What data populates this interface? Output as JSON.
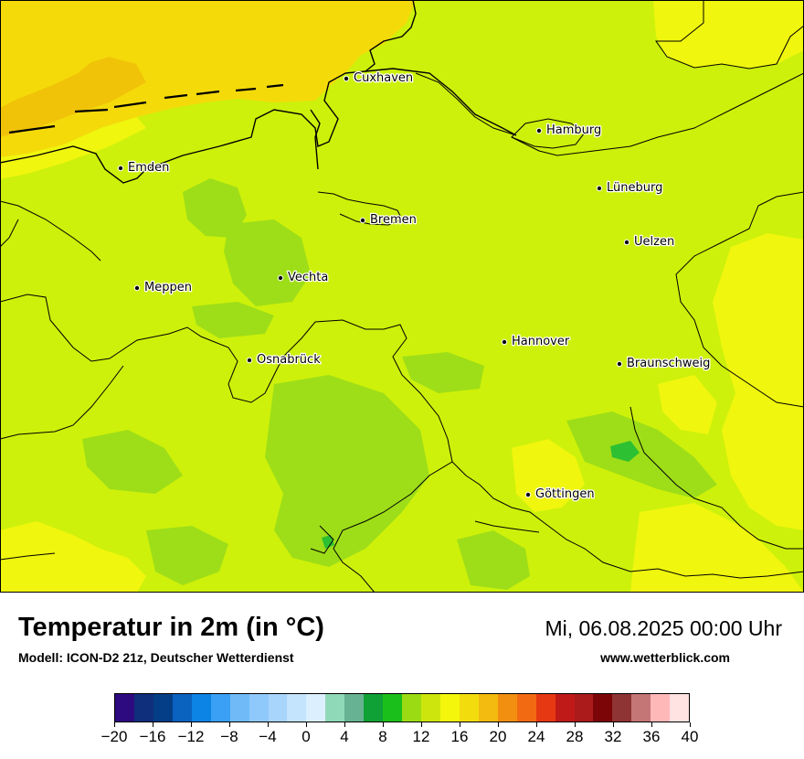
{
  "title": "Temperatur in 2m (in °C)",
  "model": "Modell: ICON-D2 21z, Deutscher Wetterdienst",
  "valid_time": "Mi, 06.08.2025 00:00 Uhr",
  "website": "www.wetterblick.com",
  "cities": [
    {
      "name": "Cuxhaven"
    },
    {
      "name": "Hamburg"
    },
    {
      "name": "Emden"
    },
    {
      "name": "Lüneburg"
    },
    {
      "name": "Bremen"
    },
    {
      "name": "Uelzen"
    },
    {
      "name": "Vechta"
    },
    {
      "name": "Meppen"
    },
    {
      "name": "Hannover"
    },
    {
      "name": "Osnabrück"
    },
    {
      "name": "Braunschweig"
    },
    {
      "name": "Göttingen"
    }
  ],
  "colorscale": {
    "labels": [
      "−20",
      "−16",
      "−12",
      "−8",
      "−4",
      "0",
      "4",
      "8",
      "12",
      "16",
      "20",
      "24",
      "28",
      "32",
      "36",
      "40"
    ],
    "colors": [
      "#2e0a80",
      "#0f2f7c",
      "#043e86",
      "#0a63be",
      "#0c84e6",
      "#3aa0f5",
      "#70baf8",
      "#8fc9fb",
      "#a8d5fc",
      "#c4e3fd",
      "#dcefff",
      "#90d9b8",
      "#67b292",
      "#10a136",
      "#1bbf1b",
      "#9bdb13",
      "#cde50d",
      "#f4f70b",
      "#f2dc0e",
      "#f3bb0f",
      "#f28f10",
      "#f26b12",
      "#e63812",
      "#c01a18",
      "#ab1b1c",
      "#7c0508",
      "#8e3434",
      "#c47575",
      "#ffb8b8",
      "#ffe2e2"
    ]
  },
  "colors": {
    "base_field": "#cdf10a",
    "cooler_patch": "#9ede18",
    "cool_spot": "#2cc032",
    "warm_patch": "#f0f60e",
    "coast_warm": "#f5da0a",
    "coast_warmer": "#f0c308"
  }
}
